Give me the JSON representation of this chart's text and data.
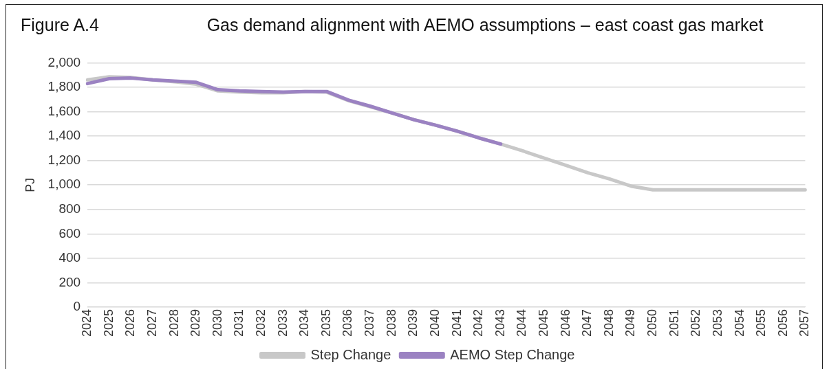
{
  "chart_data": {
    "type": "line",
    "title": "Gas demand alignment with AEMO assumptions – east coast gas market",
    "annotations": [
      "Figure A.4"
    ],
    "ylabel": "PJ",
    "categories": [
      "2024",
      "2025",
      "2026",
      "2027",
      "2028",
      "2029",
      "2030",
      "2031",
      "2032",
      "2033",
      "2034",
      "2035",
      "2036",
      "2037",
      "2038",
      "2039",
      "2040",
      "2041",
      "2042",
      "2043",
      "2044",
      "2045",
      "2046",
      "2047",
      "2048",
      "2049",
      "2050",
      "2051",
      "2052",
      "2053",
      "2054",
      "2055",
      "2056",
      "2057"
    ],
    "series": [
      {
        "name": "Step Change",
        "color": "#c8c8c8",
        "values": [
          1860,
          1885,
          1880,
          1860,
          1845,
          1825,
          1770,
          1760,
          1755,
          1755,
          1765,
          1760,
          1690,
          1640,
          1590,
          1535,
          1490,
          1440,
          1385,
          1335,
          1280,
          1220,
          1160,
          1100,
          1050,
          990,
          960,
          960,
          960,
          960,
          960,
          960,
          960,
          960
        ]
      },
      {
        "name": "AEMO Step Change",
        "color": "#9b82c2",
        "values": [
          1830,
          1870,
          1875,
          1860,
          1850,
          1840,
          1780,
          1770,
          1765,
          1760,
          1765,
          1765,
          1695,
          1645,
          1590,
          1535,
          1490,
          1440,
          1385,
          1335,
          null,
          null,
          null,
          null,
          null,
          null,
          null,
          null,
          null,
          null,
          null,
          null,
          null,
          null
        ]
      }
    ],
    "ylim": [
      0,
      2000
    ],
    "yticks": [
      {
        "value": 0,
        "label": "0"
      },
      {
        "value": 200,
        "label": "200"
      },
      {
        "value": 400,
        "label": "400"
      },
      {
        "value": 600,
        "label": "600"
      },
      {
        "value": 800,
        "label": "800"
      },
      {
        "value": 1000,
        "label": "1,000"
      },
      {
        "value": 1200,
        "label": "1,200"
      },
      {
        "value": 1400,
        "label": "1,400"
      },
      {
        "value": 1600,
        "label": "1,600"
      },
      {
        "value": 1800,
        "label": "1,800"
      },
      {
        "value": 2000,
        "label": "2,000"
      }
    ],
    "grid": "y",
    "legend": "bottom",
    "marker": "none",
    "line_style": "solid"
  }
}
